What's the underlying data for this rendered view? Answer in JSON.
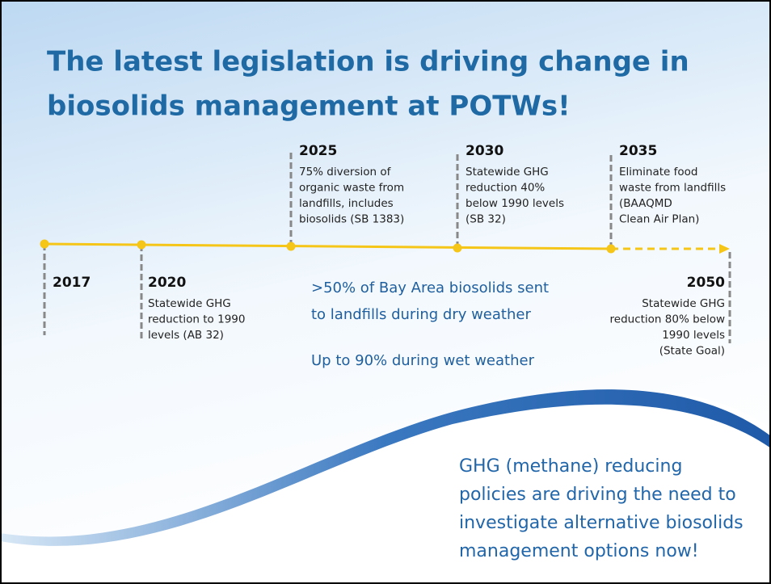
{
  "title": {
    "lines": [
      "The latest legislation is driving change in",
      "biosolids management at POTWs!"
    ]
  },
  "events": [
    {
      "year": "2017",
      "lines": []
    },
    {
      "year": "2020",
      "lines": [
        "Statewide GHG",
        "reduction to 1990",
        "levels (AB 32)"
      ]
    },
    {
      "year": "2025",
      "lines": [
        "75% diversion of",
        "organic waste from",
        "landfills, includes",
        "biosolids (SB 1383)"
      ]
    },
    {
      "year": "2030",
      "lines": [
        "Statewide GHG",
        "reduction 40%",
        "below 1990 levels",
        "(SB 32)"
      ]
    },
    {
      "year": "2035",
      "lines": [
        "Eliminate food",
        "waste from landfills",
        "(BAAQMD",
        "Clean Air Plan)"
      ]
    },
    {
      "year": "2050",
      "lines": [
        "Statewide GHG",
        "reduction 80% below",
        "1990 levels",
        "(State Goal)"
      ]
    }
  ],
  "notes": {
    "landfill": [
      ">50% of Bay Area biosolids sent",
      "to landfills during dry weather"
    ],
    "wet": "Up to 90% during wet weather"
  },
  "conclusion": {
    "lines": [
      "GHG (methane) reducing",
      "policies are driving the need to",
      "investigate alternative biosolids",
      "management options now!"
    ]
  }
}
